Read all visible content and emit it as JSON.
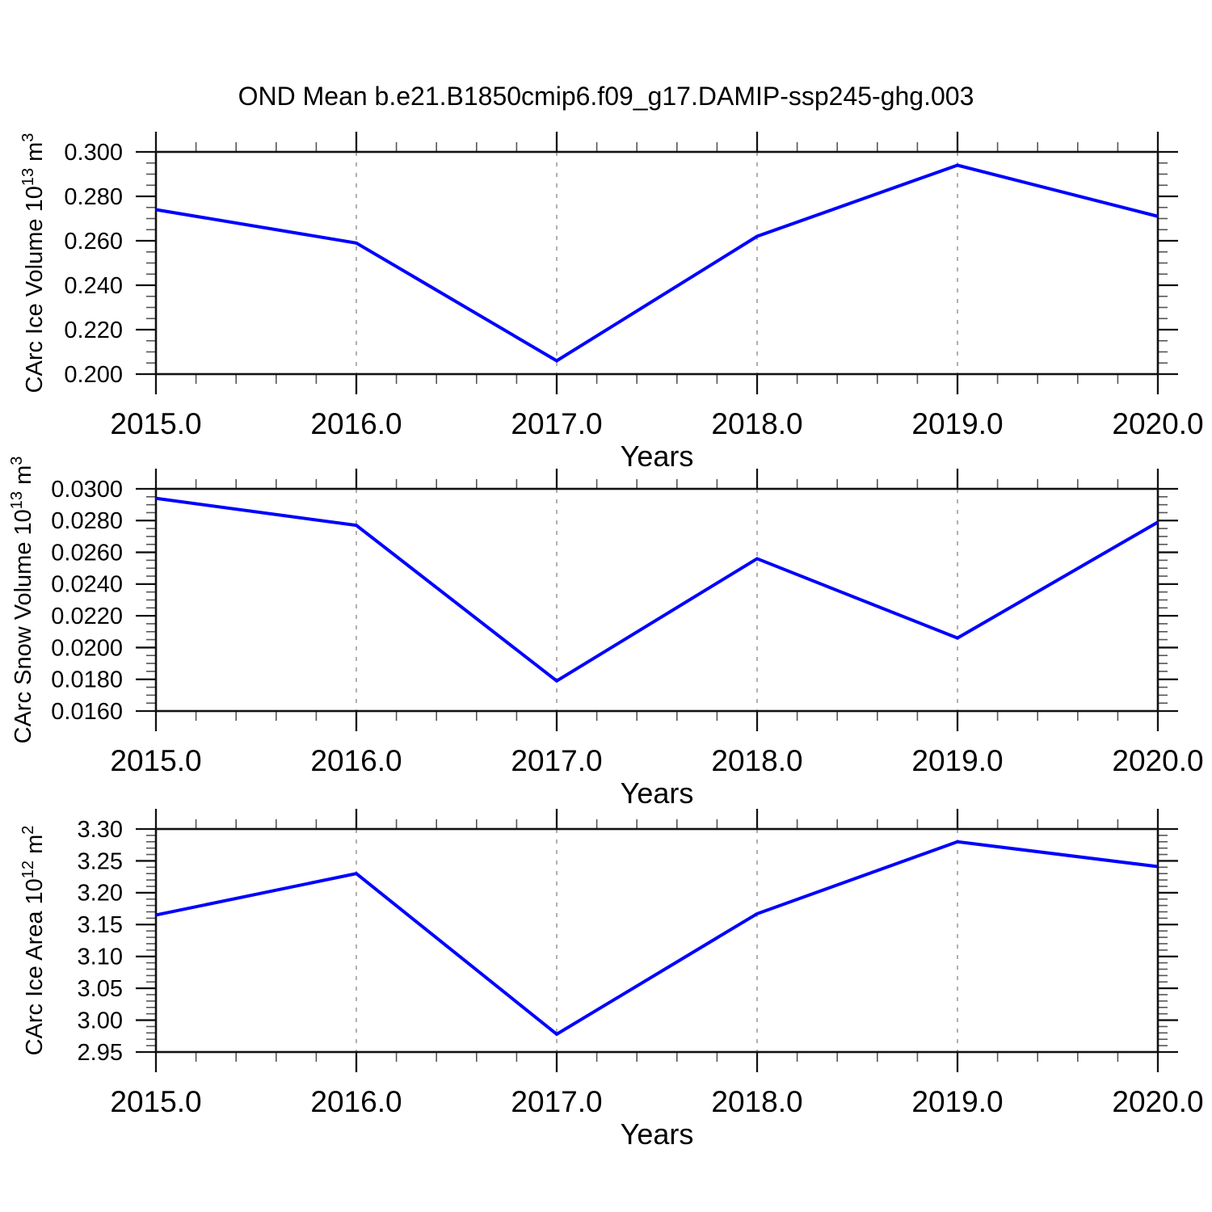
{
  "title": "OND Mean b.e21.B1850cmip6.f09_g17.DAMIP-ssp245-ghg.003",
  "chart_data": [
    {
      "type": "line",
      "name": "carc-ice-volume",
      "ylabel": "CArc Ice Volume 10^13 m^3",
      "ylabel_parts": [
        [
          "CArc Ice Volume 10",
          0
        ],
        [
          "13",
          1
        ],
        [
          " m",
          0
        ],
        [
          "3",
          1
        ]
      ],
      "xlabel": "Years",
      "x": [
        2015.0,
        2016.0,
        2017.0,
        2018.0,
        2019.0,
        2020.0
      ],
      "values": [
        0.274,
        0.259,
        0.206,
        0.262,
        0.294,
        0.271
      ],
      "ylim": [
        0.2,
        0.3
      ],
      "xlim": [
        2015.0,
        2020.0
      ],
      "ytick_step": 0.02,
      "yminor_step": 0.005,
      "ytick_labels": [
        "0.300",
        "0.280",
        "0.260",
        "0.240",
        "0.220",
        "0.200"
      ],
      "xtick_labels": [
        "2015.0",
        "2016.0",
        "2017.0",
        "2018.0",
        "2019.0",
        "2020.0"
      ],
      "xminor_step": 0.2,
      "grid": "vertical-dashed-at-interior-years",
      "line_color": "#0000ff",
      "grid_color": "#8f8f8f",
      "axis_color": "#111111"
    },
    {
      "type": "line",
      "name": "carc-snow-volume",
      "ylabel": "CArc Snow Volume 10^13 m^3",
      "ylabel_parts": [
        [
          "CArc Snow Volume 10",
          0
        ],
        [
          "13",
          1
        ],
        [
          " m",
          0
        ],
        [
          "3",
          1
        ]
      ],
      "xlabel": "Years",
      "x": [
        2015.0,
        2016.0,
        2017.0,
        2018.0,
        2019.0,
        2020.0
      ],
      "values": [
        0.0294,
        0.0277,
        0.0179,
        0.0256,
        0.0206,
        0.0279
      ],
      "ylim": [
        0.016,
        0.03
      ],
      "xlim": [
        2015.0,
        2020.0
      ],
      "ytick_step": 0.002,
      "yminor_step": 0.0005,
      "ytick_labels": [
        "0.0300",
        "0.0280",
        "0.0260",
        "0.0240",
        "0.0220",
        "0.0200",
        "0.0180",
        "0.0160"
      ],
      "xtick_labels": [
        "2015.0",
        "2016.0",
        "2017.0",
        "2018.0",
        "2019.0",
        "2020.0"
      ],
      "xminor_step": 0.2,
      "grid": "vertical-dashed-at-interior-years",
      "line_color": "#0000ff",
      "grid_color": "#8f8f8f",
      "axis_color": "#111111"
    },
    {
      "type": "line",
      "name": "carc-ice-area",
      "ylabel": "CArc Ice Area 10^12 m^2",
      "ylabel_parts": [
        [
          "CArc Ice Area 10",
          0
        ],
        [
          "12",
          1
        ],
        [
          " m",
          0
        ],
        [
          "2",
          1
        ]
      ],
      "xlabel": "Years",
      "x": [
        2015.0,
        2016.0,
        2017.0,
        2018.0,
        2019.0,
        2020.0
      ],
      "values": [
        3.165,
        3.23,
        2.978,
        3.167,
        3.28,
        3.241
      ],
      "ylim": [
        2.95,
        3.3
      ],
      "xlim": [
        2015.0,
        2020.0
      ],
      "ytick_step": 0.05,
      "yminor_step": 0.01,
      "ytick_labels": [
        "3.30",
        "3.25",
        "3.20",
        "3.15",
        "3.10",
        "3.05",
        "3.00",
        "2.95"
      ],
      "xtick_labels": [
        "2015.0",
        "2016.0",
        "2017.0",
        "2018.0",
        "2019.0",
        "2020.0"
      ],
      "xminor_step": 0.2,
      "grid": "vertical-dashed-at-interior-years",
      "line_color": "#0000ff",
      "grid_color": "#8f8f8f",
      "axis_color": "#111111"
    }
  ]
}
